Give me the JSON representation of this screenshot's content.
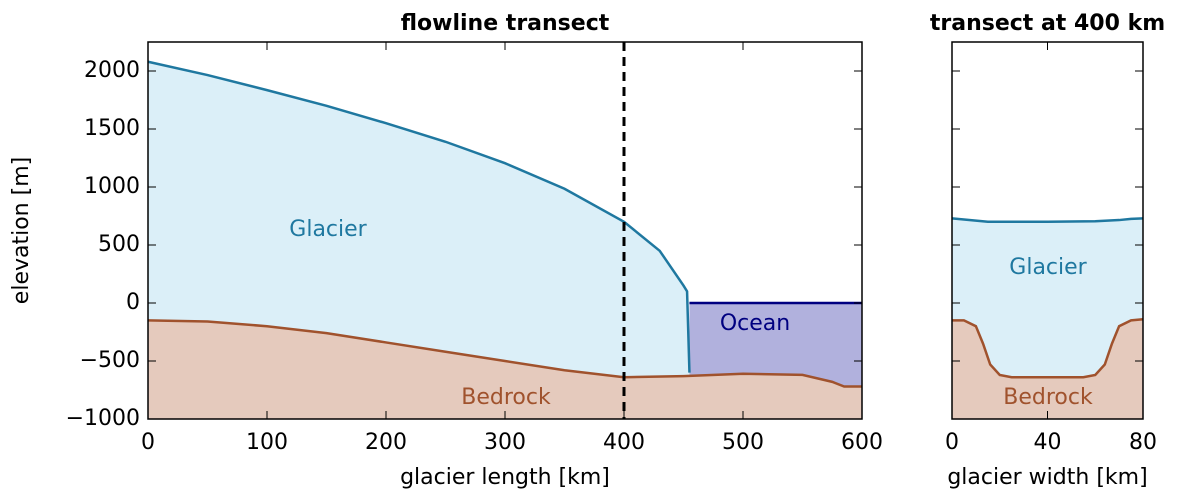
{
  "chart_data": [
    {
      "type": "area",
      "title": "flowline transect",
      "xlabel": "glacier length [km]",
      "ylabel": "elevation [m]",
      "xlim": [
        0,
        600
      ],
      "ylim": [
        -1000,
        2250
      ],
      "xticks": [
        0,
        100,
        200,
        300,
        400,
        500,
        600
      ],
      "yticks": [
        {
          "value": -1000,
          "label": "−1000"
        },
        {
          "value": -500,
          "label": "−500"
        },
        0,
        500,
        1000,
        1500,
        2000
      ],
      "vline": 400,
      "series": [
        {
          "name": "Glacier",
          "color": "#1f78a0",
          "fill": "#dbeff8",
          "x": [
            0,
            50,
            100,
            150,
            200,
            250,
            300,
            350,
            400,
            430,
            450,
            453,
            455
          ],
          "values": [
            2080,
            1965,
            1835,
            1700,
            1550,
            1390,
            1205,
            985,
            700,
            450,
            150,
            100,
            -600
          ]
        },
        {
          "name": "Ocean",
          "color": "#000080",
          "fill": "#b1b1dd",
          "x": [
            455,
            600
          ],
          "values": [
            0,
            0
          ]
        },
        {
          "name": "Bedrock",
          "color": "#a0522d",
          "fill": "#e5cabd",
          "x": [
            0,
            50,
            100,
            150,
            200,
            250,
            300,
            350,
            400,
            450,
            500,
            550,
            575,
            585,
            600
          ],
          "values": [
            -150,
            -160,
            -200,
            -260,
            -340,
            -420,
            -500,
            -580,
            -640,
            -630,
            -610,
            -620,
            -680,
            -720,
            -720
          ]
        }
      ]
    },
    {
      "type": "area",
      "title": "transect at 400 km",
      "xlabel": "glacier width [km]",
      "xlim": [
        0,
        80
      ],
      "ylim": [
        -1000,
        2250
      ],
      "xticks": [
        0,
        40,
        80
      ],
      "yticks": [
        -1000,
        -500,
        0,
        500,
        1000,
        1500,
        2000
      ],
      "series": [
        {
          "name": "Glacier",
          "color": "#1f78a0",
          "fill": "#dbeff8",
          "x": [
            0,
            5,
            10,
            15,
            20,
            40,
            60,
            65,
            70,
            75,
            80
          ],
          "values": [
            730,
            720,
            710,
            700,
            700,
            700,
            705,
            710,
            715,
            725,
            730
          ]
        },
        {
          "name": "Bedrock",
          "color": "#a0522d",
          "fill": "#e5cabd",
          "x": [
            0,
            5,
            10,
            13,
            16,
            20,
            25,
            40,
            55,
            60,
            64,
            67,
            70,
            75,
            80
          ],
          "values": [
            -150,
            -150,
            -200,
            -350,
            -530,
            -620,
            -640,
            -640,
            -640,
            -620,
            -530,
            -350,
            -200,
            -150,
            -140
          ]
        }
      ]
    }
  ]
}
